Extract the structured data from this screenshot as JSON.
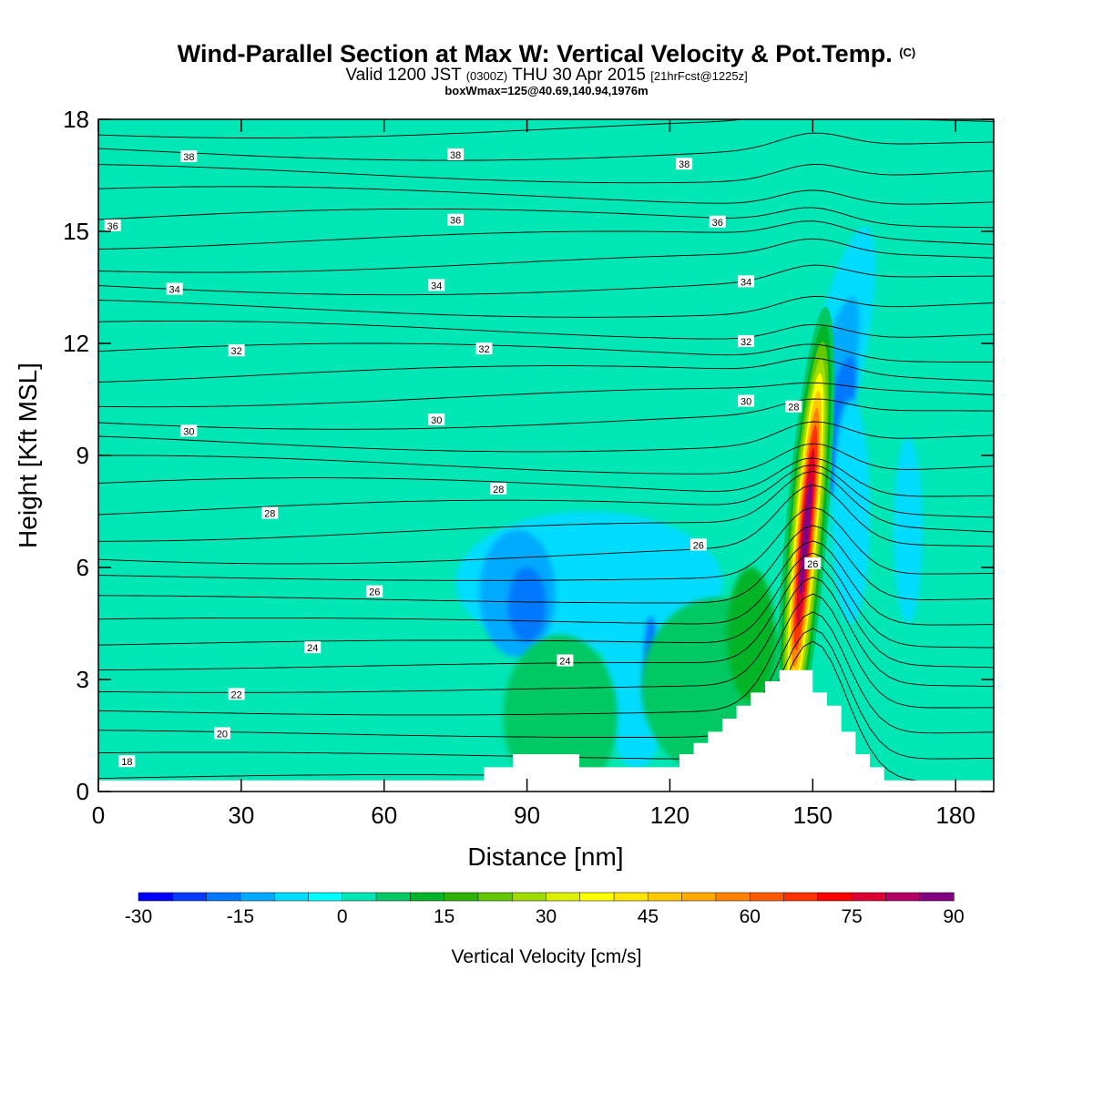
{
  "header": {
    "title_main": "Wind-Parallel Section at Max W: Vertical Velocity & Pot.Temp.",
    "title_mark": "(C)",
    "valid_a": "Valid 1200 JST",
    "valid_zulu": "(0300Z)",
    "valid_b": "THU 30 Apr 2015",
    "valid_fcst": "[21hrFcst@1225z]",
    "boxinfo": "boxWmax=125@40.69,140.94,1976m"
  },
  "chart_data": {
    "type": "heatmap",
    "xlabel": "Distance [nm]",
    "ylabel": "Height [Kft MSL]",
    "xlim": [
      0,
      188
    ],
    "ylim": [
      0,
      18
    ],
    "xticks": [
      0,
      30,
      60,
      90,
      120,
      150,
      180
    ],
    "yticks": [
      0,
      3,
      6,
      9,
      12,
      15,
      18
    ],
    "colorbar": {
      "title": "Vertical Velocity [cm/s]",
      "min": -30,
      "max": 90,
      "step": 5,
      "tick_values": [
        -30,
        -15,
        0,
        15,
        30,
        45,
        60,
        75,
        90
      ],
      "colors": [
        "#0000ff",
        "#0a3cff",
        "#0078ff",
        "#00aaff",
        "#00dcff",
        "#00ffff",
        "#00e6b4",
        "#00c864",
        "#00b428",
        "#2db400",
        "#64c800",
        "#a0dc00",
        "#dcf000",
        "#ffff00",
        "#ffe600",
        "#ffc800",
        "#ffaa00",
        "#ff8200",
        "#ff5a00",
        "#ff3200",
        "#ff0000",
        "#dc0032",
        "#b40064",
        "#820082"
      ]
    },
    "contours": {
      "variable": "Potential Temperature",
      "labels": [
        {
          "text": "38",
          "x": 19,
          "y": 17.0
        },
        {
          "text": "38",
          "x": 75,
          "y": 17.05
        },
        {
          "text": "38",
          "x": 123,
          "y": 16.8
        },
        {
          "text": "36",
          "x": 3,
          "y": 15.15
        },
        {
          "text": "36",
          "x": 75,
          "y": 15.3
        },
        {
          "text": "36",
          "x": 130,
          "y": 15.25
        },
        {
          "text": "34",
          "x": 16,
          "y": 13.45
        },
        {
          "text": "34",
          "x": 71,
          "y": 13.55
        },
        {
          "text": "34",
          "x": 136,
          "y": 13.65
        },
        {
          "text": "32",
          "x": 29,
          "y": 11.8
        },
        {
          "text": "32",
          "x": 81,
          "y": 11.85
        },
        {
          "text": "32",
          "x": 136,
          "y": 12.05
        },
        {
          "text": "30",
          "x": 19,
          "y": 9.65
        },
        {
          "text": "30",
          "x": 71,
          "y": 9.95
        },
        {
          "text": "30",
          "x": 136,
          "y": 10.45
        },
        {
          "text": "28",
          "x": 146,
          "y": 10.3
        },
        {
          "text": "28",
          "x": 36,
          "y": 7.45
        },
        {
          "text": "28",
          "x": 84,
          "y": 8.1
        },
        {
          "text": "26",
          "x": 126,
          "y": 6.6
        },
        {
          "text": "26",
          "x": 58,
          "y": 5.35
        },
        {
          "text": "26",
          "x": 150,
          "y": 6.1
        },
        {
          "text": "24",
          "x": 45,
          "y": 3.85
        },
        {
          "text": "24",
          "x": 98,
          "y": 3.5
        },
        {
          "text": "22",
          "x": 29,
          "y": 2.6
        },
        {
          "text": "20",
          "x": 26,
          "y": 1.55
        },
        {
          "text": "18",
          "x": 6,
          "y": 0.8
        }
      ]
    },
    "terrain": {
      "x": [
        0,
        1,
        2,
        3,
        4,
        5,
        6,
        7,
        8,
        9,
        10,
        11,
        12,
        13,
        14,
        15,
        16,
        17,
        18,
        19,
        20,
        21,
        22,
        23,
        24,
        25,
        26,
        27,
        28,
        29,
        30,
        31,
        32,
        33,
        34,
        35,
        36,
        37,
        38,
        39,
        40,
        41,
        42,
        43,
        44,
        45,
        46,
        47,
        48,
        49,
        50,
        51,
        52,
        53,
        54,
        55,
        56,
        57,
        58,
        59,
        60,
        61,
        62,
        63,
        64,
        65,
        66,
        67,
        68,
        69,
        70,
        71,
        72,
        73,
        74,
        75,
        76,
        77,
        78,
        79,
        80,
        81,
        82,
        83,
        84,
        85,
        86,
        87,
        88,
        89,
        90,
        91,
        92,
        93,
        94,
        95,
        96,
        97,
        98,
        99,
        100,
        101,
        102,
        103,
        104,
        105,
        106,
        107,
        108,
        109,
        110,
        111,
        112,
        113,
        114,
        115,
        116,
        117,
        118,
        119,
        120,
        121,
        122,
        123,
        124,
        125,
        126,
        127,
        128,
        129,
        130,
        131,
        132,
        133,
        134,
        135,
        136,
        137,
        138,
        139,
        140,
        141,
        142,
        143,
        144,
        145,
        146,
        147,
        148,
        149,
        150,
        151,
        152,
        153,
        154,
        155,
        156,
        157,
        158,
        159,
        160,
        161,
        162,
        163,
        164,
        165,
        166,
        167,
        168,
        169,
        170,
        171,
        172,
        173,
        174,
        175,
        176,
        177,
        178,
        179,
        180,
        181,
        182,
        183,
        184,
        185,
        186,
        187,
        188
      ],
      "height": [
        0.3,
        0.3,
        0.3,
        0.3,
        0.3,
        0.3,
        0.3,
        0.3,
        0.3,
        0.3,
        0.3,
        0.3,
        0.3,
        0.3,
        0.3,
        0.3,
        0.3,
        0.3,
        0.3,
        0.3,
        0.3,
        0.3,
        0.3,
        0.3,
        0.3,
        0.3,
        0.3,
        0.3,
        0.3,
        0.3,
        0.3,
        0.3,
        0.3,
        0.3,
        0.3,
        0.3,
        0.3,
        0.3,
        0.3,
        0.3,
        0.3,
        0.3,
        0.3,
        0.3,
        0.3,
        0.3,
        0.3,
        0.3,
        0.3,
        0.3,
        0.3,
        0.3,
        0.3,
        0.3,
        0.3,
        0.3,
        0.3,
        0.3,
        0.3,
        0.3,
        0.3,
        0.3,
        0.3,
        0.3,
        0.3,
        0.3,
        0.3,
        0.3,
        0.3,
        0.3,
        0.3,
        0.3,
        0.3,
        0.3,
        0.3,
        0.3,
        0.3,
        0.3,
        0.3,
        0.3,
        0.3,
        0.65,
        0.65,
        0.65,
        0.65,
        0.65,
        0.65,
        1.0,
        1.0,
        1.0,
        1.0,
        1.0,
        1.0,
        1.0,
        1.0,
        1.0,
        1.0,
        1.0,
        1.0,
        1.0,
        1.0,
        0.65,
        0.65,
        0.65,
        0.65,
        0.65,
        0.65,
        0.65,
        0.65,
        0.65,
        0.65,
        0.65,
        0.65,
        0.65,
        0.65,
        0.65,
        0.65,
        0.65,
        0.65,
        0.65,
        0.65,
        0.65,
        1.0,
        1.0,
        1.0,
        1.3,
        1.3,
        1.3,
        1.6,
        1.6,
        1.6,
        1.95,
        1.95,
        1.95,
        2.3,
        2.3,
        2.3,
        2.65,
        2.65,
        2.65,
        2.95,
        2.95,
        2.95,
        3.25,
        3.25,
        3.25,
        3.25,
        3.25,
        3.25,
        3.25,
        2.65,
        2.65,
        2.65,
        2.3,
        2.3,
        2.3,
        1.6,
        1.6,
        1.6,
        1.0,
        1.0,
        1.0,
        0.65,
        0.65,
        0.65,
        0.3,
        0.3,
        0.3,
        0.3,
        0.3,
        0.3,
        0.3,
        0.3,
        0.3,
        0.3,
        0.3,
        0.3,
        0.3,
        0.3,
        0.3,
        0.3,
        0.3,
        0.3,
        0.3,
        0.3,
        0.3,
        0.3,
        0.3,
        0.3,
        0.3,
        0.3,
        0.3
      ]
    }
  }
}
